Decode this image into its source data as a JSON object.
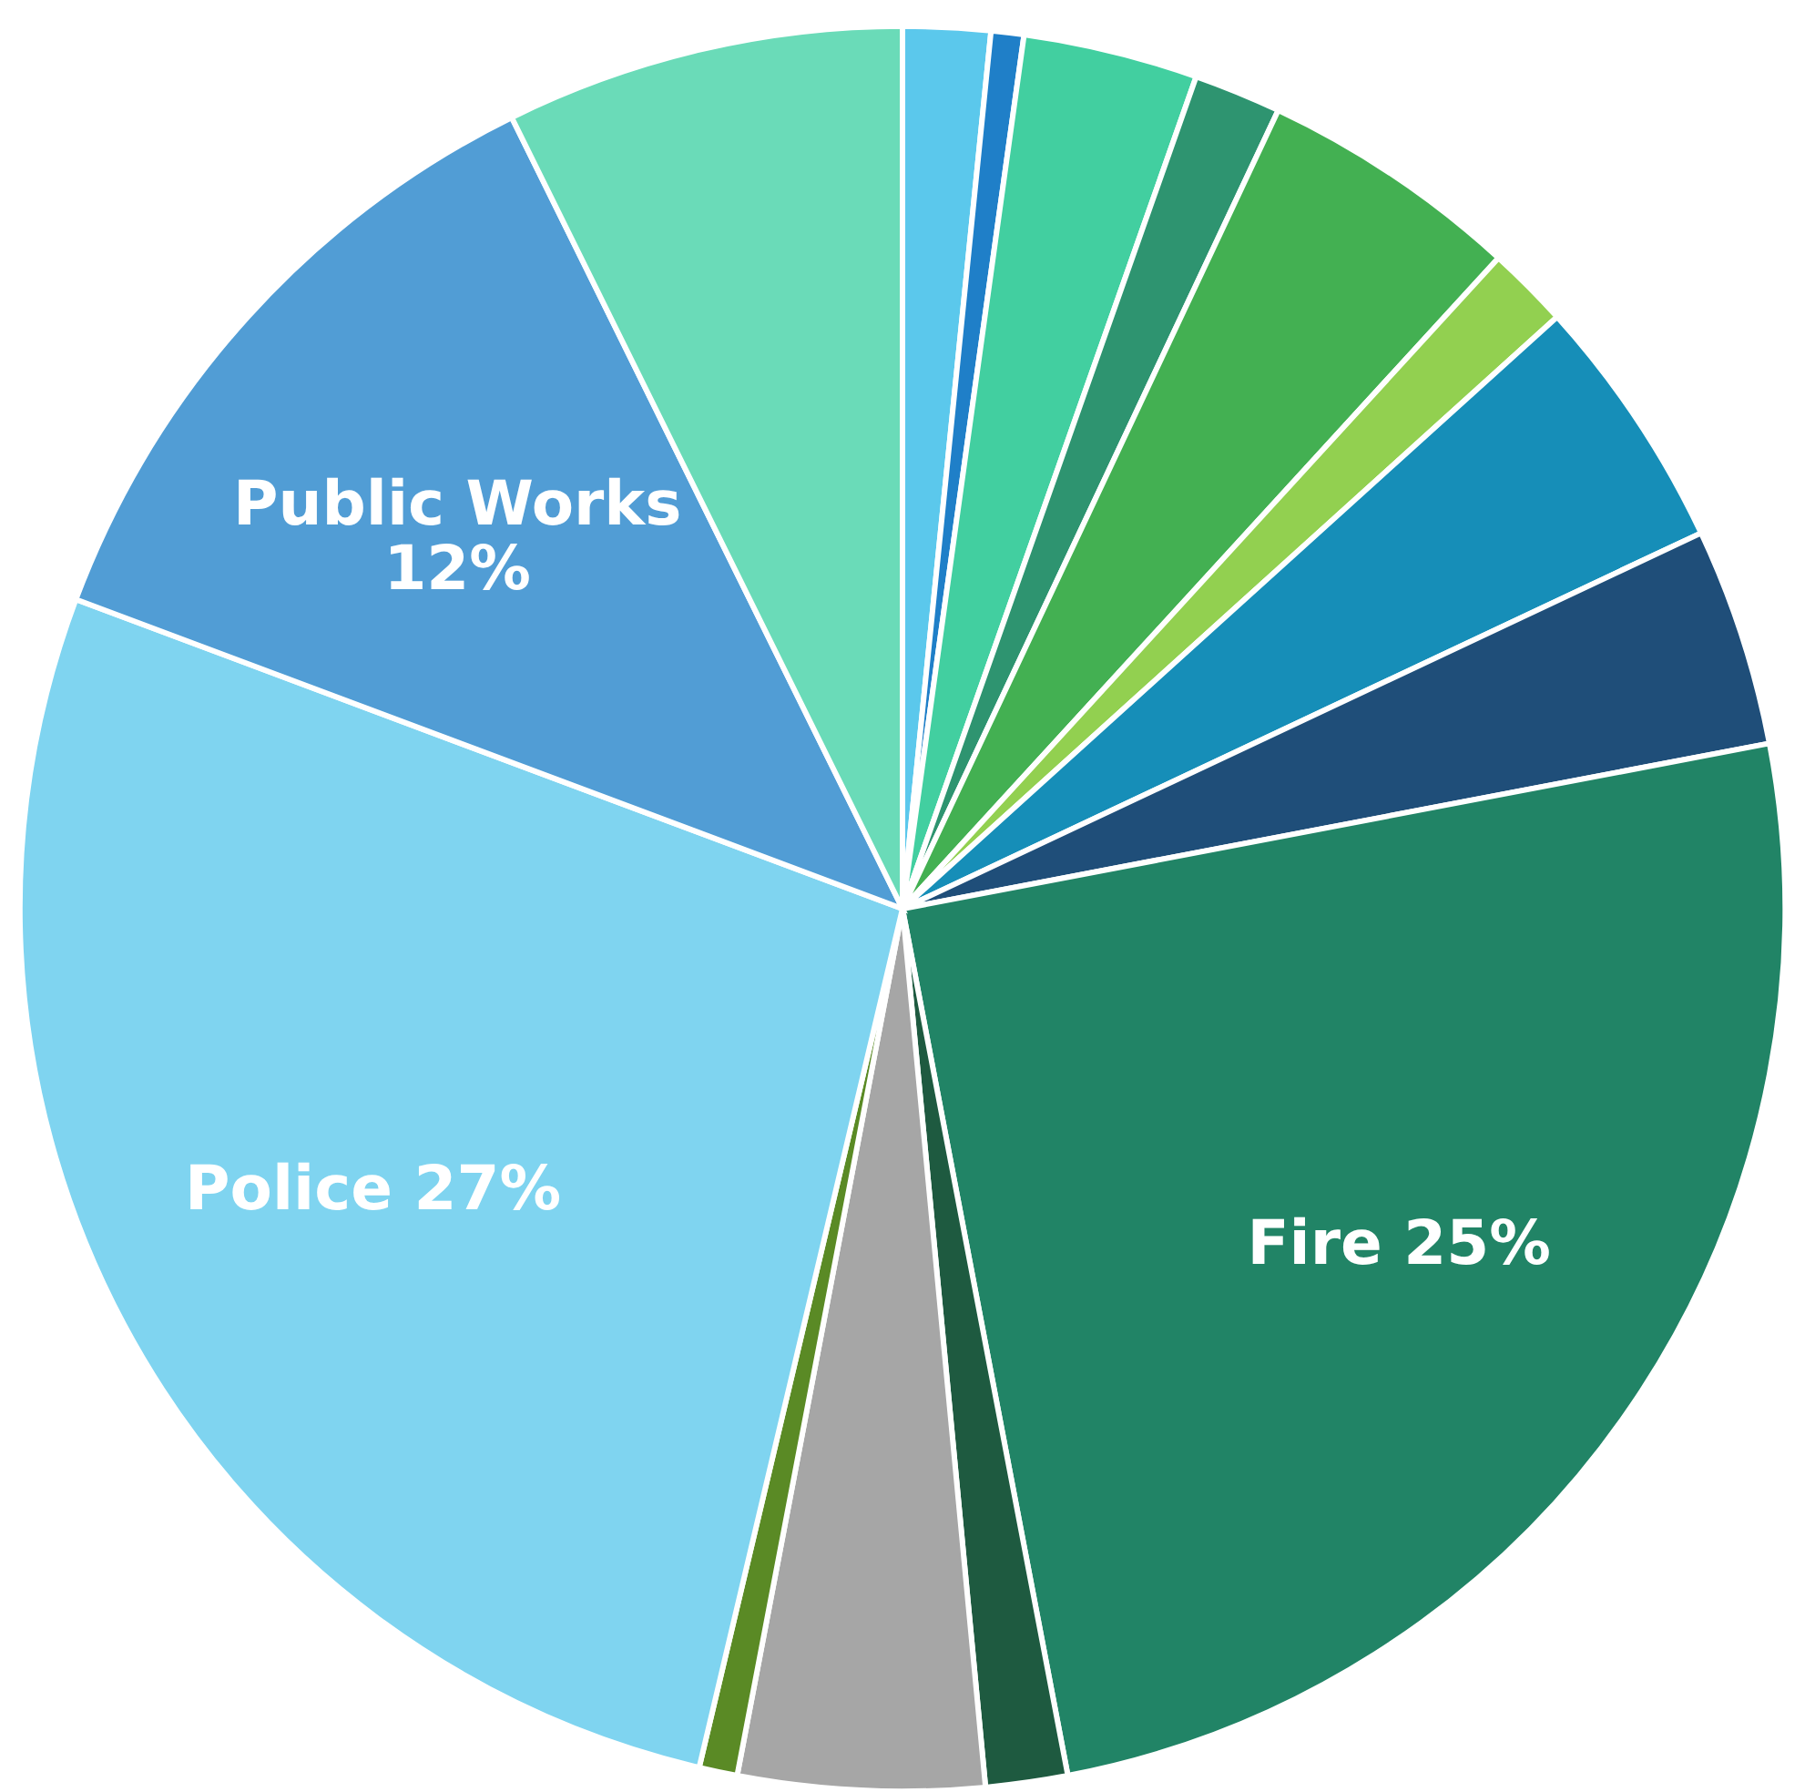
{
  "chart_data": {
    "type": "pie",
    "categories": [
      null,
      null,
      null,
      null,
      null,
      null,
      null,
      null,
      "Fire",
      null,
      null,
      null,
      "Police",
      "Public Works",
      null
    ],
    "values": [
      1.6,
      0.6,
      3.2,
      1.6,
      4.8,
      1.5,
      4.7,
      4.0,
      25,
      1.5,
      4.5,
      0.7,
      27,
      12,
      7.3
    ],
    "value_labels": [
      null,
      null,
      null,
      null,
      null,
      null,
      null,
      null,
      "25%",
      null,
      null,
      null,
      "27%",
      "12%",
      null
    ],
    "colors": [
      "#5bc8ec",
      "#1f7fc8",
      "#42cfa0",
      "#2e9470",
      "#43b052",
      "#92d050",
      "#168eb8",
      "#1f4e79",
      "#218466",
      "#1e5a40",
      "#a6a6a6",
      "#5a8a25",
      "#7fd4f0",
      "#519dd5",
      "#6adbb8"
    ]
  }
}
